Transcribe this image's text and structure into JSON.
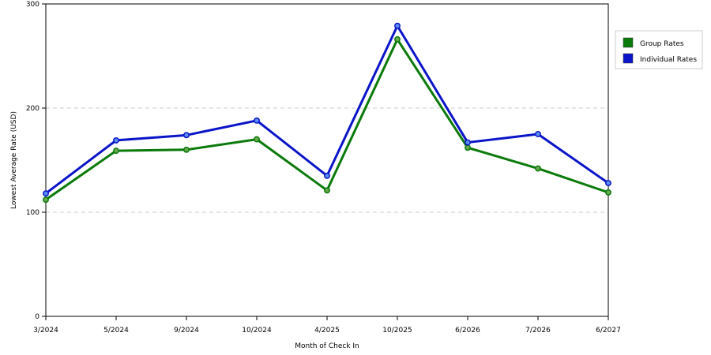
{
  "chart_data": {
    "type": "line",
    "title": "",
    "xlabel": "Month of Check In",
    "ylabel": "Lowest Average Rate (USD)",
    "categories": [
      "3/2024",
      "5/2024",
      "9/2024",
      "10/2024",
      "4/2025",
      "10/2025",
      "6/2026",
      "7/2026",
      "6/2027"
    ],
    "ylim": [
      0,
      300
    ],
    "yticks": [
      "0",
      "100",
      "200",
      "300"
    ],
    "grid": "horizontal dashed",
    "legend_position": "right",
    "series": [
      {
        "name": "Group Rates",
        "color": "#0a7a0a",
        "values": [
          112,
          159,
          160,
          170,
          121,
          266,
          162,
          142,
          119
        ]
      },
      {
        "name": "Individual Rates",
        "color": "#0a14c8",
        "values": [
          118,
          169,
          174,
          188,
          135,
          279,
          167,
          175,
          128
        ]
      }
    ]
  }
}
